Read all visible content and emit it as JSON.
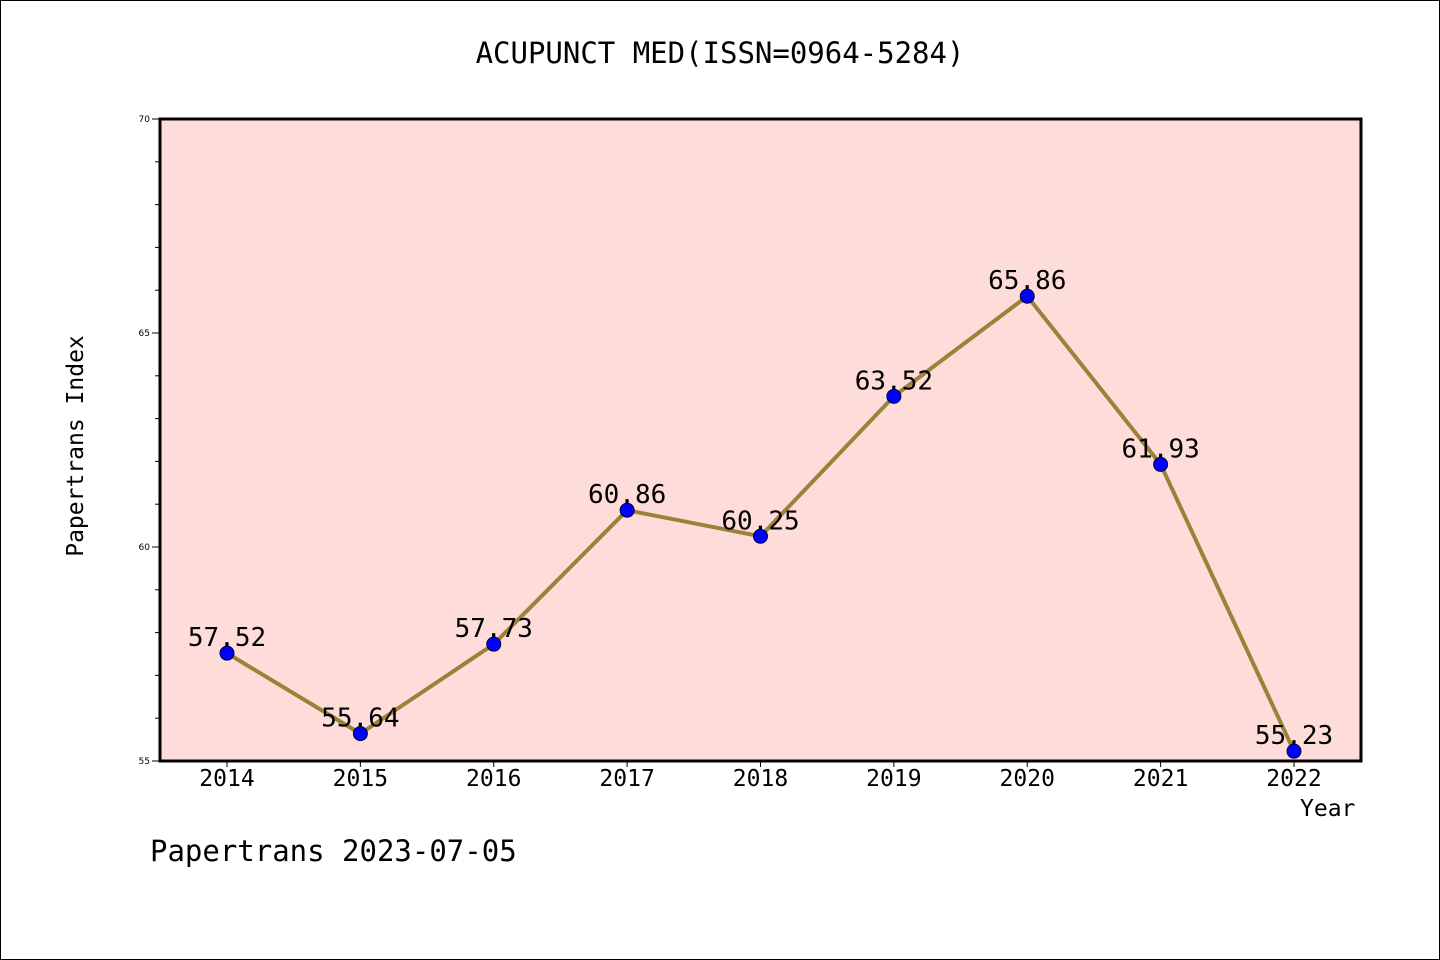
{
  "chart_data": {
    "type": "line",
    "title": "ACUPUNCT MED(ISSN=0964-5284)",
    "xlabel": "Year",
    "ylabel": "Papertrans Index",
    "footer": "Papertrans 2023-07-05",
    "x": [
      "2014",
      "2015",
      "2016",
      "2017",
      "2018",
      "2019",
      "2020",
      "2021",
      "2022"
    ],
    "series": [
      {
        "values": [
          57.52,
          55.64,
          57.73,
          60.86,
          60.25,
          63.52,
          65.86,
          61.93,
          55.23
        ],
        "labels": [
          "57.52",
          "55.64",
          "57.73",
          "60.86",
          "60.25",
          "63.52",
          "65.86",
          "61.93",
          "55.23"
        ]
      }
    ],
    "ylim": [
      55,
      70
    ],
    "yticks": [
      "55",
      "60",
      "65",
      "70"
    ],
    "grid": false,
    "colors": {
      "plot_background": "#fddcd9",
      "line": "#9a8239",
      "marker": "#0000ff"
    }
  }
}
